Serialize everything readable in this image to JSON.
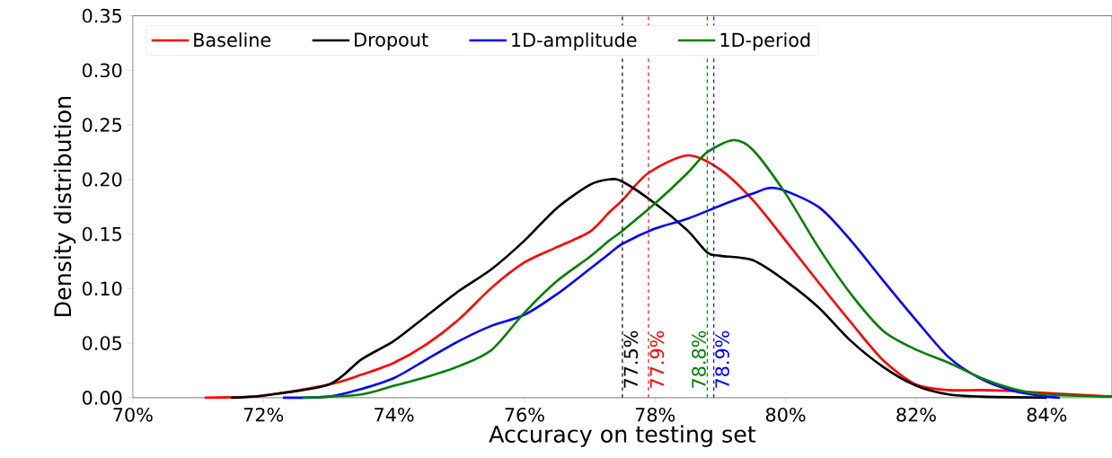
{
  "chart_data": {
    "type": "line",
    "xlabel": "Accuracy on testing set",
    "ylabel": "Density distribution",
    "xlim": [
      70,
      85
    ],
    "ylim": [
      0,
      0.35
    ],
    "xticks": [
      {
        "value": 70,
        "label": "70%"
      },
      {
        "value": 72,
        "label": "72%"
      },
      {
        "value": 74,
        "label": "74%"
      },
      {
        "value": 76,
        "label": "76%"
      },
      {
        "value": 78,
        "label": "78%"
      },
      {
        "value": 80,
        "label": "80%"
      },
      {
        "value": 82,
        "label": "82%"
      },
      {
        "value": 84,
        "label": "84%"
      }
    ],
    "yticks": [
      {
        "value": 0,
        "label": "0.00"
      },
      {
        "value": 0.05,
        "label": "0.05"
      },
      {
        "value": 0.1,
        "label": "0.10"
      },
      {
        "value": 0.15,
        "label": "0.15"
      },
      {
        "value": 0.2,
        "label": "0.20"
      },
      {
        "value": 0.25,
        "label": "0.25"
      },
      {
        "value": 0.3,
        "label": "0.30"
      },
      {
        "value": 0.35,
        "label": "0.35"
      }
    ],
    "legend": "top left",
    "grid": false,
    "series": [
      {
        "name": "Baseline",
        "color": "#ff0000",
        "x": [
          71.1,
          72,
          73,
          73.5,
          74,
          74.5,
          75,
          75.5,
          76,
          76.5,
          77,
          77.3,
          77.5,
          77.9,
          78.5,
          79,
          79.5,
          80,
          80.5,
          81,
          81.5,
          82,
          82.5,
          83,
          83.5,
          85
        ],
        "values": [
          0,
          0.002,
          0.012,
          0.021,
          0.032,
          0.049,
          0.072,
          0.101,
          0.124,
          0.138,
          0.152,
          0.17,
          0.181,
          0.206,
          0.222,
          0.209,
          0.181,
          0.144,
          0.106,
          0.069,
          0.034,
          0.012,
          0.007,
          0.007,
          0.006,
          0.001
        ]
      },
      {
        "name": "Dropout",
        "color": "#000000",
        "x": [
          71.5,
          72,
          73,
          73.5,
          74,
          74.5,
          75,
          75.5,
          76,
          76.5,
          77,
          77.3,
          77.5,
          78,
          78.5,
          78.8,
          79,
          79.5,
          80,
          80.5,
          81,
          81.5,
          82,
          82.5,
          83,
          84
        ],
        "values": [
          0,
          0.002,
          0.012,
          0.035,
          0.052,
          0.075,
          0.098,
          0.118,
          0.144,
          0.174,
          0.195,
          0.2,
          0.198,
          0.178,
          0.153,
          0.133,
          0.13,
          0.126,
          0.107,
          0.083,
          0.052,
          0.028,
          0.011,
          0.003,
          0.001,
          0
        ]
      },
      {
        "name": "1D-amplitude",
        "color": "#0000ff",
        "x": [
          72.3,
          73,
          73.5,
          74,
          74.5,
          75,
          75.5,
          76,
          76.5,
          77,
          77.3,
          77.5,
          78,
          78.5,
          79,
          79.5,
          79.85,
          80.5,
          81,
          81.5,
          82,
          82.5,
          83,
          83.5,
          84,
          84.2
        ],
        "values": [
          0,
          0.001,
          0.008,
          0.018,
          0.035,
          0.052,
          0.066,
          0.076,
          0.095,
          0.118,
          0.132,
          0.141,
          0.155,
          0.164,
          0.176,
          0.187,
          0.192,
          0.175,
          0.144,
          0.107,
          0.071,
          0.037,
          0.017,
          0.006,
          0.001,
          0
        ]
      },
      {
        "name": "1D-period",
        "color": "#008000",
        "x": [
          72.6,
          73.5,
          74,
          74.5,
          75,
          75.5,
          76,
          76.5,
          77,
          77.3,
          77.5,
          78,
          78.5,
          78.8,
          79.2,
          79.5,
          80,
          80.5,
          81,
          81.5,
          82,
          82.5,
          83,
          83.5,
          84,
          85
        ],
        "values": [
          0,
          0.003,
          0.011,
          0.019,
          0.029,
          0.044,
          0.078,
          0.107,
          0.129,
          0.144,
          0.153,
          0.178,
          0.206,
          0.225,
          0.236,
          0.227,
          0.187,
          0.138,
          0.095,
          0.061,
          0.044,
          0.032,
          0.018,
          0.008,
          0.003,
          0.001
        ]
      }
    ],
    "ref_lines": [
      {
        "axis": "x",
        "value": 77.5,
        "label": "77.5%",
        "color": "#000000",
        "line_style": "dashed"
      },
      {
        "axis": "x",
        "value": 77.9,
        "label": "77.9%",
        "color": "#ff0000",
        "line_style": "dashed"
      },
      {
        "axis": "x",
        "value": 78.8,
        "label": "78.8%",
        "color": "#008000",
        "line_style": "dashed"
      },
      {
        "axis": "x",
        "value": 78.9,
        "label": "78.9%",
        "color": "#0000ff",
        "line_style": "dashed"
      }
    ]
  }
}
